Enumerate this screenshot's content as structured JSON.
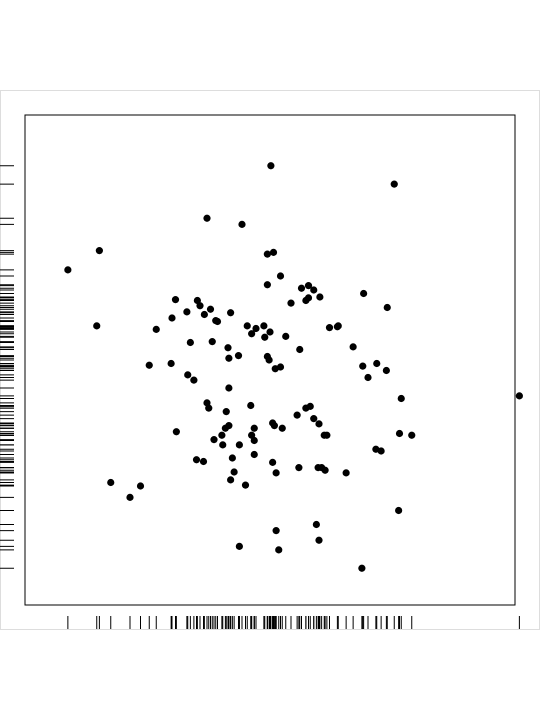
{
  "chart_data": {
    "type": "scatter",
    "title": "",
    "xlabel": "",
    "ylabel": "",
    "xlim": [
      -2.8,
      2.8
    ],
    "ylim": [
      -2.8,
      2.8
    ],
    "grid": false,
    "legend": "none",
    "rug": {
      "x": true,
      "y": true
    },
    "colors": {
      "point": "#000000",
      "frame": "#000000",
      "rug": "#000000",
      "panel_border": "#dddddd"
    },
    "points": [
      [
        0.01,
        2.22
      ],
      [
        1.42,
        2.01
      ],
      [
        -0.72,
        1.62
      ],
      [
        -0.32,
        1.55
      ],
      [
        -1.95,
        1.25
      ],
      [
        -0.03,
        1.21
      ],
      [
        0.04,
        1.23
      ],
      [
        -2.31,
        1.03
      ],
      [
        0.12,
        0.96
      ],
      [
        -0.03,
        0.86
      ],
      [
        0.44,
        0.85
      ],
      [
        0.5,
        0.8
      ],
      [
        0.36,
        0.82
      ],
      [
        0.57,
        0.72
      ],
      [
        0.41,
        0.68
      ],
      [
        0.24,
        0.65
      ],
      [
        1.07,
        0.76
      ],
      [
        1.34,
        0.6
      ],
      [
        -1.08,
        0.69
      ],
      [
        -0.83,
        0.68
      ],
      [
        -0.68,
        0.58
      ],
      [
        -0.8,
        0.62
      ],
      [
        -0.75,
        0.52
      ],
      [
        -0.45,
        0.54
      ],
      [
        -1.12,
        0.48
      ],
      [
        -0.95,
        0.55
      ],
      [
        -0.6,
        0.44
      ],
      [
        -0.62,
        0.45
      ],
      [
        -0.26,
        0.39
      ],
      [
        -0.07,
        0.39
      ],
      [
        -0.16,
        0.36
      ],
      [
        0.0,
        0.32
      ],
      [
        0.18,
        0.27
      ],
      [
        0.34,
        0.12
      ],
      [
        -0.21,
        0.3
      ],
      [
        -0.06,
        0.26
      ],
      [
        -1.3,
        0.35
      ],
      [
        -1.98,
        0.39
      ],
      [
        -0.91,
        0.2
      ],
      [
        -0.66,
        0.21
      ],
      [
        -0.48,
        0.14
      ],
      [
        -0.36,
        0.05
      ],
      [
        -0.47,
        0.02
      ],
      [
        -0.03,
        0.04
      ],
      [
        -0.01,
        0.0
      ],
      [
        -1.38,
        -0.06
      ],
      [
        -1.13,
        -0.04
      ],
      [
        -0.94,
        -0.17
      ],
      [
        -0.87,
        -0.23
      ],
      [
        0.12,
        -0.08
      ],
      [
        0.06,
        -0.1
      ],
      [
        -0.47,
        -0.32
      ],
      [
        1.06,
        -0.07
      ],
      [
        1.22,
        -0.04
      ],
      [
        0.44,
        0.71
      ],
      [
        0.77,
        0.38
      ],
      [
        0.68,
        0.37
      ],
      [
        0.78,
        0.39
      ],
      [
        0.95,
        0.15
      ],
      [
        1.12,
        -0.2
      ],
      [
        1.33,
        -0.12
      ],
      [
        1.5,
        -0.44
      ],
      [
        -0.72,
        -0.49
      ],
      [
        -0.7,
        -0.55
      ],
      [
        -0.5,
        -0.59
      ],
      [
        -0.22,
        -0.52
      ],
      [
        -0.51,
        -0.78
      ],
      [
        -0.55,
        -0.86
      ],
      [
        -0.47,
        -0.75
      ],
      [
        -0.21,
        -0.86
      ],
      [
        -0.18,
        -0.78
      ],
      [
        0.05,
        -0.75
      ],
      [
        0.03,
        -0.72
      ],
      [
        0.31,
        -0.63
      ],
      [
        0.46,
        -0.53
      ],
      [
        0.41,
        -0.55
      ],
      [
        0.5,
        -0.67
      ],
      [
        0.56,
        -0.73
      ],
      [
        0.62,
        -0.86
      ],
      [
        0.65,
        -0.86
      ],
      [
        -1.07,
        -0.82
      ],
      [
        -0.54,
        -0.97
      ],
      [
        -0.64,
        -0.91
      ],
      [
        -0.18,
        -0.92
      ],
      [
        0.14,
        -0.78
      ],
      [
        -0.35,
        -0.97
      ],
      [
        -0.18,
        -1.08
      ],
      [
        -0.84,
        -1.14
      ],
      [
        1.27,
        -1.04
      ],
      [
        1.62,
        -0.86
      ],
      [
        1.48,
        -0.84
      ],
      [
        1.21,
        -1.02
      ],
      [
        -0.43,
        -1.12
      ],
      [
        0.03,
        -1.17
      ],
      [
        -0.41,
        -1.28
      ],
      [
        0.55,
        -1.23
      ],
      [
        0.63,
        -1.26
      ],
      [
        -1.48,
        -1.44
      ],
      [
        -1.82,
        -1.4
      ],
      [
        -1.6,
        -1.57
      ],
      [
        0.33,
        -1.23
      ],
      [
        0.07,
        -1.29
      ],
      [
        -0.45,
        -1.37
      ],
      [
        -0.28,
        -1.43
      ],
      [
        0.59,
        -1.23
      ],
      [
        1.47,
        -1.72
      ],
      [
        0.53,
        -1.88
      ],
      [
        0.07,
        -1.95
      ],
      [
        0.56,
        -2.06
      ],
      [
        -0.35,
        -2.13
      ],
      [
        0.1,
        -2.17
      ],
      [
        1.05,
        -2.38
      ],
      [
        2.85,
        -0.41
      ],
      [
        -0.76,
        -1.16
      ],
      [
        0.87,
        -1.29
      ]
    ]
  }
}
